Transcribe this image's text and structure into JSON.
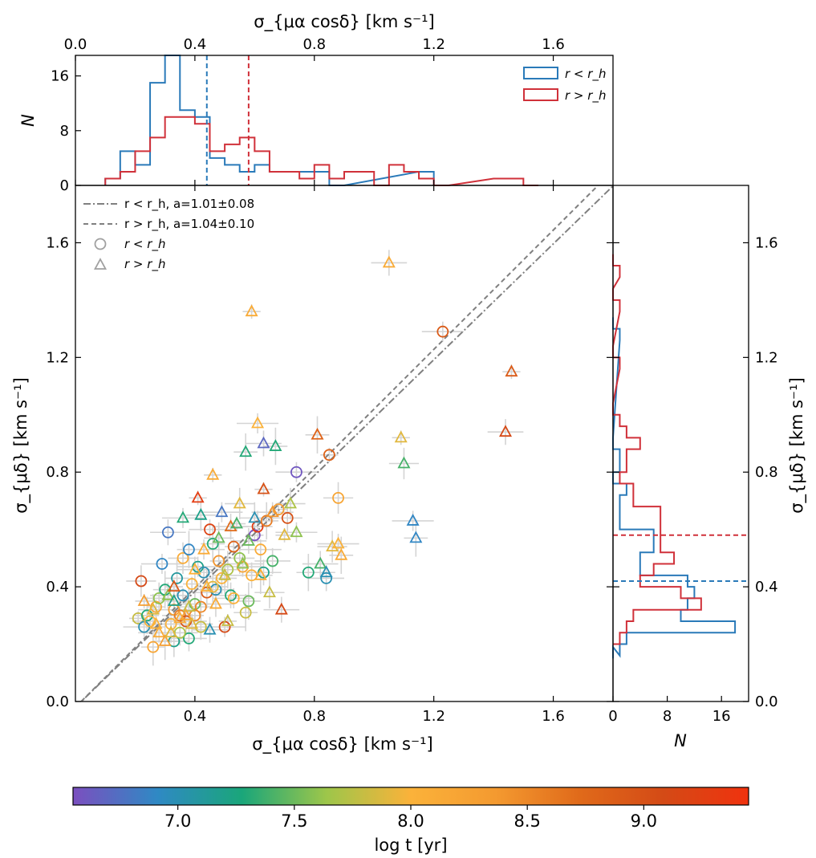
{
  "chart_data": {
    "type": "scatter",
    "main": {
      "xlabel": "σ_{μα cosδ} [km s⁻¹]",
      "ylabel": "σ_{μδ} [km s⁻¹]",
      "xlim": [
        0.0,
        1.8
      ],
      "ylim": [
        0.0,
        1.8
      ],
      "xticks": [
        "0.4",
        "0.8",
        "1.2",
        "1.6"
      ],
      "yticks": [
        "0.0",
        "0.4",
        "0.8",
        "1.2",
        "1.6"
      ],
      "fits": [
        {
          "name": "r < r_h, a=1.01±0.08",
          "style": "dash-dot",
          "color": "#808080",
          "slope": 1.01,
          "intercept": -0.02
        },
        {
          "name": "r > r_h, a=1.04±0.10",
          "style": "dashed",
          "color": "#808080",
          "slope": 1.04,
          "intercept": -0.02
        }
      ],
      "legend_position": "upper-left",
      "legend_markers": [
        {
          "name": "r < r_h",
          "marker": "circle"
        },
        {
          "name": "r > r_h",
          "marker": "triangle"
        }
      ],
      "points_inner": [
        [
          0.21,
          0.29,
          7.8
        ],
        [
          0.22,
          0.42,
          9.1
        ],
        [
          0.23,
          0.26,
          7.0
        ],
        [
          0.24,
          0.3,
          7.3
        ],
        [
          0.25,
          0.28,
          8.0
        ],
        [
          0.27,
          0.33,
          8.2
        ],
        [
          0.28,
          0.36,
          7.6
        ],
        [
          0.29,
          0.48,
          6.9
        ],
        [
          0.3,
          0.39,
          7.3
        ],
        [
          0.31,
          0.59,
          6.8
        ],
        [
          0.32,
          0.27,
          8.0
        ],
        [
          0.33,
          0.21,
          7.2
        ],
        [
          0.33,
          0.32,
          8.3
        ],
        [
          0.34,
          0.43,
          7.1
        ],
        [
          0.35,
          0.3,
          8.6
        ],
        [
          0.36,
          0.37,
          7.0
        ],
        [
          0.36,
          0.5,
          8.1
        ],
        [
          0.37,
          0.28,
          9.0
        ],
        [
          0.38,
          0.53,
          6.9
        ],
        [
          0.38,
          0.22,
          7.3
        ],
        [
          0.39,
          0.41,
          8.0
        ],
        [
          0.4,
          0.34,
          7.5
        ],
        [
          0.41,
          0.47,
          7.2
        ],
        [
          0.42,
          0.33,
          8.5
        ],
        [
          0.42,
          0.26,
          7.8
        ],
        [
          0.43,
          0.45,
          7.0
        ],
        [
          0.44,
          0.38,
          8.9
        ],
        [
          0.45,
          0.6,
          9.2
        ],
        [
          0.46,
          0.55,
          7.3
        ],
        [
          0.47,
          0.39,
          7.0
        ],
        [
          0.48,
          0.49,
          8.4
        ],
        [
          0.49,
          0.43,
          8.0
        ],
        [
          0.5,
          0.26,
          9.1
        ],
        [
          0.51,
          0.46,
          7.7
        ],
        [
          0.52,
          0.37,
          7.3
        ],
        [
          0.53,
          0.54,
          8.8
        ],
        [
          0.55,
          0.5,
          7.6
        ],
        [
          0.56,
          0.47,
          8.2
        ],
        [
          0.57,
          0.31,
          7.8
        ],
        [
          0.59,
          0.44,
          8.0
        ],
        [
          0.6,
          0.58,
          6.5
        ],
        [
          0.61,
          0.61,
          9.3
        ],
        [
          0.62,
          0.53,
          8.1
        ],
        [
          0.64,
          0.63,
          8.6
        ],
        [
          0.66,
          0.49,
          7.4
        ],
        [
          0.68,
          0.67,
          8.3
        ],
        [
          0.71,
          0.64,
          9.0
        ],
        [
          0.74,
          0.8,
          6.6
        ],
        [
          0.78,
          0.45,
          7.3
        ],
        [
          0.84,
          0.43,
          7.0
        ],
        [
          0.85,
          0.86,
          8.8
        ],
        [
          0.88,
          0.71,
          8.2
        ],
        [
          1.23,
          1.29,
          8.9
        ],
        [
          0.26,
          0.19,
          8.2
        ],
        [
          0.35,
          0.24,
          7.7
        ],
        [
          0.4,
          0.3,
          8.5
        ],
        [
          0.46,
          0.4,
          7.9
        ],
        [
          0.53,
          0.36,
          8.0
        ],
        [
          0.58,
          0.35,
          7.5
        ],
        [
          0.63,
          0.45,
          7.2
        ]
      ],
      "points_outer": [
        [
          0.23,
          0.35,
          8.3
        ],
        [
          0.26,
          0.32,
          7.9
        ],
        [
          0.28,
          0.24,
          8.1
        ],
        [
          0.3,
          0.21,
          8.3
        ],
        [
          0.31,
          0.37,
          7.6
        ],
        [
          0.33,
          0.4,
          8.9
        ],
        [
          0.35,
          0.29,
          8.1
        ],
        [
          0.36,
          0.64,
          7.3
        ],
        [
          0.38,
          0.33,
          7.8
        ],
        [
          0.4,
          0.46,
          8.0
        ],
        [
          0.41,
          0.71,
          9.3
        ],
        [
          0.42,
          0.65,
          7.2
        ],
        [
          0.43,
          0.53,
          8.1
        ],
        [
          0.44,
          0.4,
          8.0
        ],
        [
          0.45,
          0.25,
          7.0
        ],
        [
          0.46,
          0.79,
          8.1
        ],
        [
          0.48,
          0.57,
          7.5
        ],
        [
          0.49,
          0.66,
          6.8
        ],
        [
          0.5,
          0.44,
          7.8
        ],
        [
          0.52,
          0.61,
          8.7
        ],
        [
          0.54,
          0.62,
          7.4
        ],
        [
          0.55,
          0.69,
          7.9
        ],
        [
          0.56,
          0.48,
          7.6
        ],
        [
          0.57,
          0.87,
          7.3
        ],
        [
          0.58,
          0.56,
          7.5
        ],
        [
          0.59,
          1.36,
          8.1
        ],
        [
          0.6,
          0.64,
          7.0
        ],
        [
          0.61,
          0.97,
          8.0
        ],
        [
          0.62,
          0.44,
          8.1
        ],
        [
          0.63,
          0.9,
          6.7
        ],
        [
          0.63,
          0.74,
          9.0
        ],
        [
          0.65,
          0.38,
          7.8
        ],
        [
          0.66,
          0.66,
          8.4
        ],
        [
          0.67,
          0.89,
          7.3
        ],
        [
          0.69,
          0.32,
          9.1
        ],
        [
          0.7,
          0.58,
          7.9
        ],
        [
          0.72,
          0.69,
          7.7
        ],
        [
          0.74,
          0.59,
          7.6
        ],
        [
          0.81,
          0.93,
          8.8
        ],
        [
          0.82,
          0.48,
          7.4
        ],
        [
          0.84,
          0.45,
          7.0
        ],
        [
          0.86,
          0.54,
          7.9
        ],
        [
          0.88,
          0.55,
          8.0
        ],
        [
          0.89,
          0.51,
          8.1
        ],
        [
          1.05,
          1.53,
          8.1
        ],
        [
          1.09,
          0.92,
          7.9
        ],
        [
          1.1,
          0.83,
          7.4
        ],
        [
          1.13,
          0.63,
          6.9
        ],
        [
          1.14,
          0.57,
          6.9
        ],
        [
          1.44,
          0.94,
          9.1
        ],
        [
          1.46,
          1.15,
          8.9
        ],
        [
          0.27,
          0.27,
          8.0
        ],
        [
          0.32,
          0.24,
          7.9
        ],
        [
          0.37,
          0.3,
          8.2
        ],
        [
          0.47,
          0.34,
          8.1
        ],
        [
          0.51,
          0.28,
          7.8
        ],
        [
          0.33,
          0.35,
          7.2
        ],
        [
          0.39,
          0.27,
          7.9
        ]
      ]
    },
    "top_hist": {
      "xlabel": "σ_{μα cosδ} [km s⁻¹]",
      "ylabel": "N",
      "xlim": [
        0.0,
        1.8
      ],
      "ylim": [
        0,
        19
      ],
      "xticks": [
        "0.0",
        "0.4",
        "0.8",
        "1.2",
        "1.6"
      ],
      "yticks": [
        "0",
        "8",
        "16"
      ],
      "bin_width": 0.05,
      "series": [
        {
          "name": "r < r_h",
          "color": "#2a7ab9",
          "median": 0.44,
          "bins": [
            [
              0.1,
              1
            ],
            [
              0.15,
              5
            ],
            [
              0.2,
              3
            ],
            [
              0.25,
              15
            ],
            [
              0.3,
              19
            ],
            [
              0.35,
              11
            ],
            [
              0.4,
              10
            ],
            [
              0.45,
              4
            ],
            [
              0.5,
              3
            ],
            [
              0.55,
              2
            ],
            [
              0.6,
              3
            ],
            [
              0.65,
              2
            ],
            [
              0.7,
              2
            ],
            [
              0.75,
              2
            ],
            [
              0.8,
              2
            ],
            [
              0.85,
              0
            ],
            [
              1.15,
              2
            ],
            [
              1.2,
              0
            ]
          ]
        },
        {
          "name": "r > r_h",
          "color": "#d0313a",
          "median": 0.58,
          "bins": [
            [
              0.1,
              1
            ],
            [
              0.15,
              2
            ],
            [
              0.2,
              5
            ],
            [
              0.25,
              7
            ],
            [
              0.3,
              10
            ],
            [
              0.35,
              10
            ],
            [
              0.4,
              9
            ],
            [
              0.45,
              5
            ],
            [
              0.5,
              6
            ],
            [
              0.55,
              7
            ],
            [
              0.6,
              5
            ],
            [
              0.65,
              2
            ],
            [
              0.7,
              2
            ],
            [
              0.75,
              1
            ],
            [
              0.8,
              3
            ],
            [
              0.85,
              1
            ],
            [
              0.9,
              2
            ],
            [
              0.95,
              2
            ],
            [
              1.0,
              0
            ],
            [
              1.0,
              0
            ],
            [
              1.05,
              3
            ],
            [
              1.1,
              2
            ],
            [
              1.15,
              1
            ],
            [
              1.2,
              0
            ],
            [
              1.4,
              1
            ],
            [
              1.45,
              1
            ],
            [
              1.5,
              0
            ]
          ]
        }
      ],
      "legend_position": "upper-right"
    },
    "right_hist": {
      "ylabel": "σ_{μδ} [km s⁻¹]",
      "xlabel": "N",
      "ylim": [
        0.0,
        1.8
      ],
      "xlim": [
        0,
        20
      ],
      "xticks": [
        "0",
        "8",
        "16"
      ],
      "yticks": [
        "0.0",
        "0.4",
        "0.8",
        "1.2",
        "1.6"
      ],
      "bin_width": 0.04,
      "series": [
        {
          "name": "r < r_h",
          "color": "#2a7ab9",
          "median": 0.42,
          "bins": [
            [
              0.15,
              0
            ],
            [
              0.16,
              1
            ],
            [
              0.2,
              2
            ],
            [
              0.24,
              18
            ],
            [
              0.28,
              10
            ],
            [
              0.32,
              11
            ],
            [
              0.36,
              12
            ],
            [
              0.4,
              11
            ],
            [
              0.44,
              4
            ],
            [
              0.48,
              4
            ],
            [
              0.52,
              6
            ],
            [
              0.56,
              6
            ],
            [
              0.6,
              1
            ],
            [
              0.64,
              1
            ],
            [
              0.68,
              1
            ],
            [
              0.72,
              2
            ],
            [
              0.76,
              0
            ],
            [
              0.8,
              1
            ],
            [
              0.84,
              1
            ],
            [
              0.88,
              0
            ],
            [
              1.26,
              1
            ],
            [
              1.3,
              0
            ]
          ]
        },
        {
          "name": "r > r_h",
          "color": "#d0313a",
          "median": 0.58,
          "bins": [
            [
              0.2,
              1
            ],
            [
              0.24,
              2
            ],
            [
              0.28,
              3
            ],
            [
              0.32,
              13
            ],
            [
              0.36,
              10
            ],
            [
              0.4,
              4
            ],
            [
              0.44,
              6
            ],
            [
              0.48,
              9
            ],
            [
              0.52,
              7
            ],
            [
              0.56,
              7
            ],
            [
              0.6,
              7
            ],
            [
              0.64,
              7
            ],
            [
              0.68,
              3
            ],
            [
              0.72,
              3
            ],
            [
              0.76,
              1
            ],
            [
              0.8,
              2
            ],
            [
              0.84,
              2
            ],
            [
              0.88,
              4
            ],
            [
              0.92,
              2
            ],
            [
              0.96,
              1
            ],
            [
              1.0,
              0
            ],
            [
              1.16,
              1
            ],
            [
              1.2,
              0
            ],
            [
              1.36,
              1
            ],
            [
              1.4,
              0
            ],
            [
              1.48,
              1
            ],
            [
              1.52,
              0
            ]
          ]
        }
      ]
    },
    "colorbar": {
      "label": "log t [yr]",
      "range": [
        6.55,
        9.45
      ],
      "ticks": [
        "7.0",
        "7.5",
        "8.0",
        "8.5",
        "9.0"
      ],
      "colormap": [
        "#7b4fbf",
        "#2f89c4",
        "#1aa67a",
        "#9dc64a",
        "#fbb23a",
        "#f49a30",
        "#e06a1a",
        "#d44a16",
        "#f0320e"
      ]
    }
  }
}
